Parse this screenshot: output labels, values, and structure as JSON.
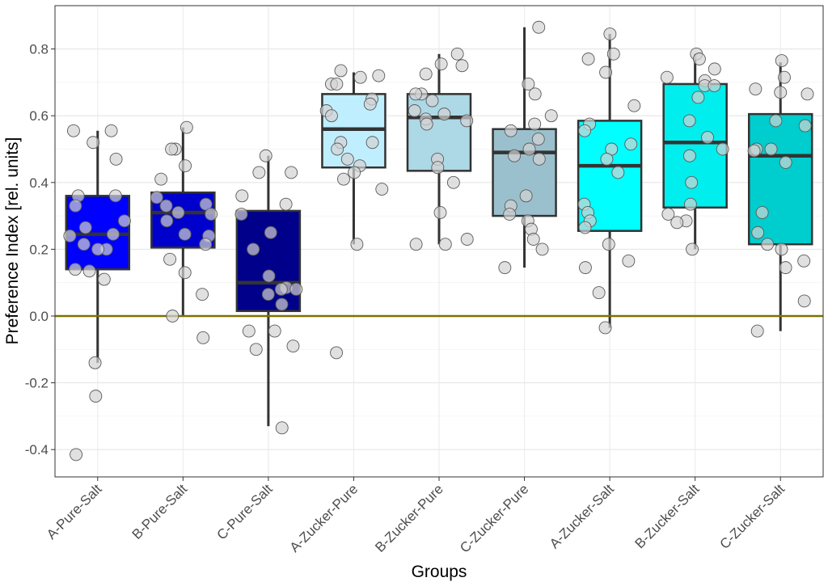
{
  "chart_data": {
    "type": "box",
    "xlabel": "Groups",
    "ylabel": "Preference Index [rel. units]",
    "ylim": [
      -0.48,
      0.93
    ],
    "yticks": [
      -0.4,
      -0.2,
      0.0,
      0.2,
      0.4,
      0.6,
      0.8
    ],
    "ytick_labels": [
      "-0.4",
      "-0.2",
      "0.0",
      "0.2",
      "0.4",
      "0.6",
      "0.8"
    ],
    "reference_line": {
      "y": 0.0,
      "color": "#7f7000"
    },
    "grid": true,
    "legend": "none",
    "point_color": "#d3d3d3",
    "categories": [
      "A-Pure-Salt",
      "B-Pure-Salt",
      "C-Pure-Salt",
      "A-Zucker-Pure",
      "B-Zucker-Pure",
      "C-Zucker-Pure",
      "A-Zucker-Salt",
      "B-Zucker-Salt",
      "C-Zucker-Salt"
    ],
    "boxes": [
      {
        "group": "A-Pure-Salt",
        "color": "#0000ff",
        "whisker_low": -0.14,
        "q1": 0.14,
        "median": 0.245,
        "q3": 0.36,
        "whisker_high": 0.555,
        "points": [
          0.555,
          0.555,
          0.52,
          0.47,
          0.36,
          0.36,
          0.33,
          0.285,
          0.265,
          0.245,
          0.24,
          0.215,
          0.2,
          0.2,
          0.14,
          0.135,
          0.11,
          -0.14,
          -0.24,
          -0.415
        ]
      },
      {
        "group": "B-Pure-Salt",
        "color": "#0000cd",
        "whisker_low": 0.0,
        "q1": 0.205,
        "median": 0.31,
        "q3": 0.37,
        "whisker_high": 0.565,
        "points": [
          0.565,
          0.5,
          0.5,
          0.45,
          0.41,
          0.355,
          0.335,
          0.33,
          0.31,
          0.305,
          0.285,
          0.245,
          0.24,
          0.215,
          0.17,
          0.13,
          0.065,
          0.0,
          -0.065
        ]
      },
      {
        "group": "C-Pure-Salt",
        "color": "#00008b",
        "whisker_low": -0.33,
        "q1": 0.015,
        "median": 0.1,
        "q3": 0.315,
        "whisker_high": 0.48,
        "points": [
          0.48,
          0.43,
          0.43,
          0.36,
          0.335,
          0.305,
          0.25,
          0.2,
          0.12,
          0.085,
          0.08,
          0.08,
          0.065,
          0.035,
          -0.045,
          -0.045,
          -0.09,
          -0.1,
          -0.335
        ]
      },
      {
        "group": "A-Zucker-Pure",
        "color": "#bfefff",
        "whisker_low": 0.215,
        "q1": 0.445,
        "median": 0.56,
        "q3": 0.665,
        "whisker_high": 0.73,
        "points": [
          0.735,
          0.72,
          0.715,
          0.695,
          0.695,
          0.65,
          0.635,
          0.615,
          0.6,
          0.52,
          0.52,
          0.5,
          0.47,
          0.45,
          0.43,
          0.41,
          0.38,
          0.215,
          -0.11
        ]
      },
      {
        "group": "B-Zucker-Pure",
        "color": "#add8e6",
        "whisker_low": 0.215,
        "q1": 0.435,
        "median": 0.595,
        "q3": 0.665,
        "whisker_high": 0.785,
        "points": [
          0.785,
          0.755,
          0.75,
          0.725,
          0.665,
          0.665,
          0.645,
          0.615,
          0.605,
          0.59,
          0.585,
          0.575,
          0.47,
          0.445,
          0.4,
          0.31,
          0.23,
          0.215,
          0.215
        ]
      },
      {
        "group": "C-Zucker-Pure",
        "color": "#9ac0cd",
        "whisker_low": 0.145,
        "q1": 0.3,
        "median": 0.49,
        "q3": 0.56,
        "whisker_high": 0.865,
        "points": [
          0.865,
          0.695,
          0.665,
          0.6,
          0.575,
          0.555,
          0.53,
          0.5,
          0.48,
          0.47,
          0.36,
          0.33,
          0.305,
          0.285,
          0.26,
          0.23,
          0.2,
          0.145
        ]
      },
      {
        "group": "A-Zucker-Salt",
        "color": "#00ffff",
        "whisker_low": -0.035,
        "q1": 0.255,
        "median": 0.45,
        "q3": 0.585,
        "whisker_high": 0.845,
        "points": [
          0.845,
          0.785,
          0.77,
          0.73,
          0.63,
          0.575,
          0.555,
          0.515,
          0.5,
          0.47,
          0.43,
          0.335,
          0.31,
          0.285,
          0.265,
          0.215,
          0.165,
          0.145,
          0.07,
          -0.035
        ]
      },
      {
        "group": "B-Zucker-Salt",
        "color": "#00eeee",
        "whisker_low": 0.2,
        "q1": 0.325,
        "median": 0.52,
        "q3": 0.695,
        "whisker_high": 0.785,
        "points": [
          0.785,
          0.77,
          0.74,
          0.715,
          0.705,
          0.69,
          0.69,
          0.655,
          0.585,
          0.535,
          0.5,
          0.48,
          0.4,
          0.335,
          0.305,
          0.285,
          0.28,
          0.2
        ]
      },
      {
        "group": "C-Zucker-Salt",
        "color": "#00cdcd",
        "whisker_low": -0.045,
        "q1": 0.215,
        "median": 0.48,
        "q3": 0.605,
        "whisker_high": 0.76,
        "points": [
          0.765,
          0.715,
          0.68,
          0.67,
          0.665,
          0.585,
          0.57,
          0.5,
          0.5,
          0.495,
          0.46,
          0.31,
          0.25,
          0.215,
          0.2,
          0.165,
          0.145,
          0.045,
          -0.045
        ]
      }
    ]
  }
}
